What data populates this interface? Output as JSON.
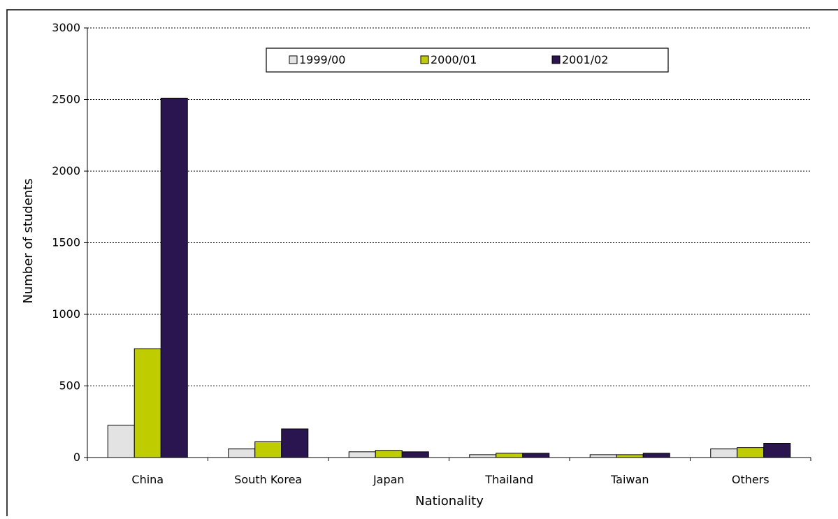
{
  "chart_data": {
    "type": "bar",
    "title": "",
    "xlabel": "Nationality",
    "ylabel": "Number of students",
    "categories": [
      "China",
      "South Korea",
      "Japan",
      "Thailand",
      "Taiwan",
      "Others"
    ],
    "series": [
      {
        "name": "1999/00",
        "color": "#e3e3e3",
        "values": [
          225,
          60,
          40,
          20,
          20,
          60
        ]
      },
      {
        "name": "2000/01",
        "color": "#bfcc00",
        "values": [
          760,
          110,
          50,
          30,
          20,
          70
        ]
      },
      {
        "name": "2001/02",
        "color": "#2a1550",
        "values": [
          2510,
          200,
          40,
          30,
          30,
          100
        ]
      }
    ],
    "ylim": [
      0,
      3000
    ],
    "yticks": [
      0,
      500,
      1000,
      1500,
      2000,
      2500,
      3000
    ],
    "grid": "horizontal-dotted",
    "legend_position": "top-center"
  }
}
